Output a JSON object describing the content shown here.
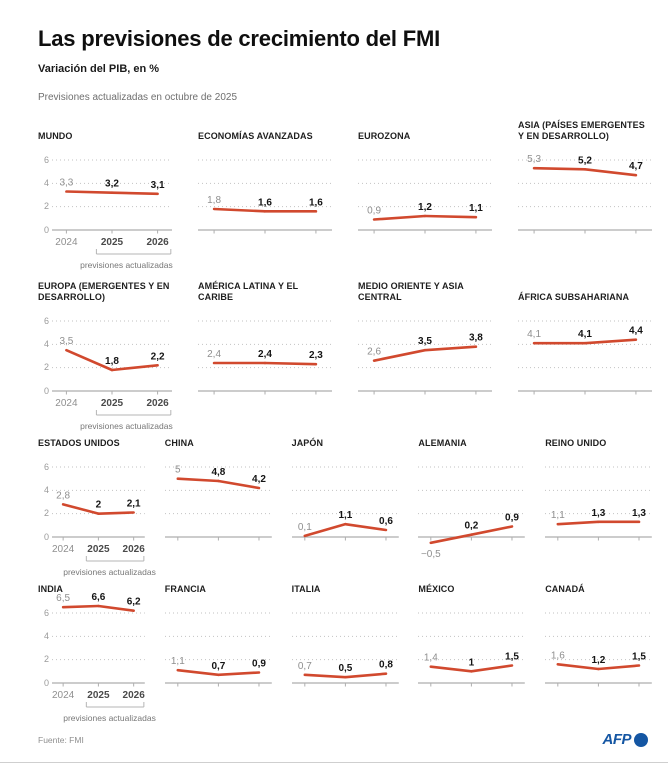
{
  "header": {
    "title": "Las previsiones de crecimiento del FMI",
    "subtitle": "Variación del PIB, en %",
    "note": "Previsiones actualizadas en octubre de 2025"
  },
  "footer": {
    "source": "Fuente: FMI",
    "brand": "AFP"
  },
  "colors": {
    "line": "#d1492e",
    "label_2024": "#8f8f8f",
    "label_forecast": "#141414",
    "grid": "#c2c2c2",
    "axis": "#aeaeae",
    "year_2024": "#8f8f8f",
    "year_forecast": "#4a4a4a",
    "afp_blue": "#1456a3"
  },
  "chart_data": {
    "type": "line",
    "x": [
      "2024",
      "2025",
      "2026"
    ],
    "ylabel": "Variación del PIB, en %",
    "ylim": [
      0,
      6
    ],
    "yticks": [
      0,
      2,
      4,
      6
    ],
    "grid": "dotted",
    "bracket_label": "previsiones actualizadas",
    "rows": [
      {
        "cols": 4,
        "charts": [
          {
            "title": "MUNDO",
            "values": [
              3.3,
              3.2,
              3.1
            ],
            "labels": [
              "3,3",
              "3,2",
              "3,1"
            ]
          },
          {
            "title": "ECONOMÍAS AVANZADAS",
            "values": [
              1.8,
              1.6,
              1.6
            ],
            "labels": [
              "1,8",
              "1,6",
              "1,6"
            ]
          },
          {
            "title": "EUROZONA",
            "values": [
              0.9,
              1.2,
              1.1
            ],
            "labels": [
              "0,9",
              "1,2",
              "1,1"
            ]
          },
          {
            "title": "ASIA (PAÍSES EMERGENTES Y EN DESARROLLO)",
            "values": [
              5.3,
              5.2,
              4.7
            ],
            "labels": [
              "5,3",
              "5,2",
              "4,7"
            ]
          }
        ]
      },
      {
        "cols": 4,
        "charts": [
          {
            "title": "EUROPA (EMERGENTES Y EN DESARROLLO)",
            "values": [
              3.5,
              1.8,
              2.2
            ],
            "labels": [
              "3,5",
              "1,8",
              "2,2"
            ]
          },
          {
            "title": "AMÉRICA LATINA Y EL CARIBE",
            "values": [
              2.4,
              2.4,
              2.3
            ],
            "labels": [
              "2,4",
              "2,4",
              "2,3"
            ]
          },
          {
            "title": "MEDIO ORIENTE Y ASIA CENTRAL",
            "values": [
              2.6,
              3.5,
              3.8
            ],
            "labels": [
              "2,6",
              "3,5",
              "3,8"
            ]
          },
          {
            "title": "ÁFRICA SUBSAHARIANA",
            "values": [
              4.1,
              4.1,
              4.4
            ],
            "labels": [
              "4,1",
              "4,1",
              "4,4"
            ]
          }
        ]
      },
      {
        "cols": 5,
        "charts": [
          {
            "title": "ESTADOS UNIDOS",
            "values": [
              2.8,
              2,
              2.1
            ],
            "labels": [
              "2,8",
              "2",
              "2,1"
            ]
          },
          {
            "title": "CHINA",
            "values": [
              5,
              4.8,
              4.2
            ],
            "labels": [
              "5",
              "4,8",
              "4,2"
            ]
          },
          {
            "title": "JAPÓN",
            "values": [
              0.1,
              1.1,
              0.6
            ],
            "labels": [
              "0,1",
              "1,1",
              "0,6"
            ]
          },
          {
            "title": "ALEMANIA",
            "values": [
              -0.5,
              0.2,
              0.9
            ],
            "labels": [
              "−0,5",
              "0,2",
              "0,9"
            ]
          },
          {
            "title": "REINO UNIDO",
            "values": [
              1.1,
              1.3,
              1.3
            ],
            "labels": [
              "1,1",
              "1,3",
              "1,3"
            ]
          }
        ]
      },
      {
        "cols": 5,
        "charts": [
          {
            "title": "INDIA",
            "values": [
              6.5,
              6.6,
              6.2
            ],
            "labels": [
              "6,5",
              "6,6",
              "6,2"
            ]
          },
          {
            "title": "FRANCIA",
            "values": [
              1.1,
              0.7,
              0.9
            ],
            "labels": [
              "1,1",
              "0,7",
              "0,9"
            ]
          },
          {
            "title": "ITALIA",
            "values": [
              0.7,
              0.5,
              0.8
            ],
            "labels": [
              "0,7",
              "0,5",
              "0,8"
            ]
          },
          {
            "title": "MÉXICO",
            "values": [
              1.4,
              1,
              1.5
            ],
            "labels": [
              "1,4",
              "1",
              "1,5"
            ]
          },
          {
            "title": "CANADÁ",
            "values": [
              1.6,
              1.2,
              1.5
            ],
            "labels": [
              "1,6",
              "1,2",
              "1,5"
            ]
          }
        ]
      }
    ]
  }
}
